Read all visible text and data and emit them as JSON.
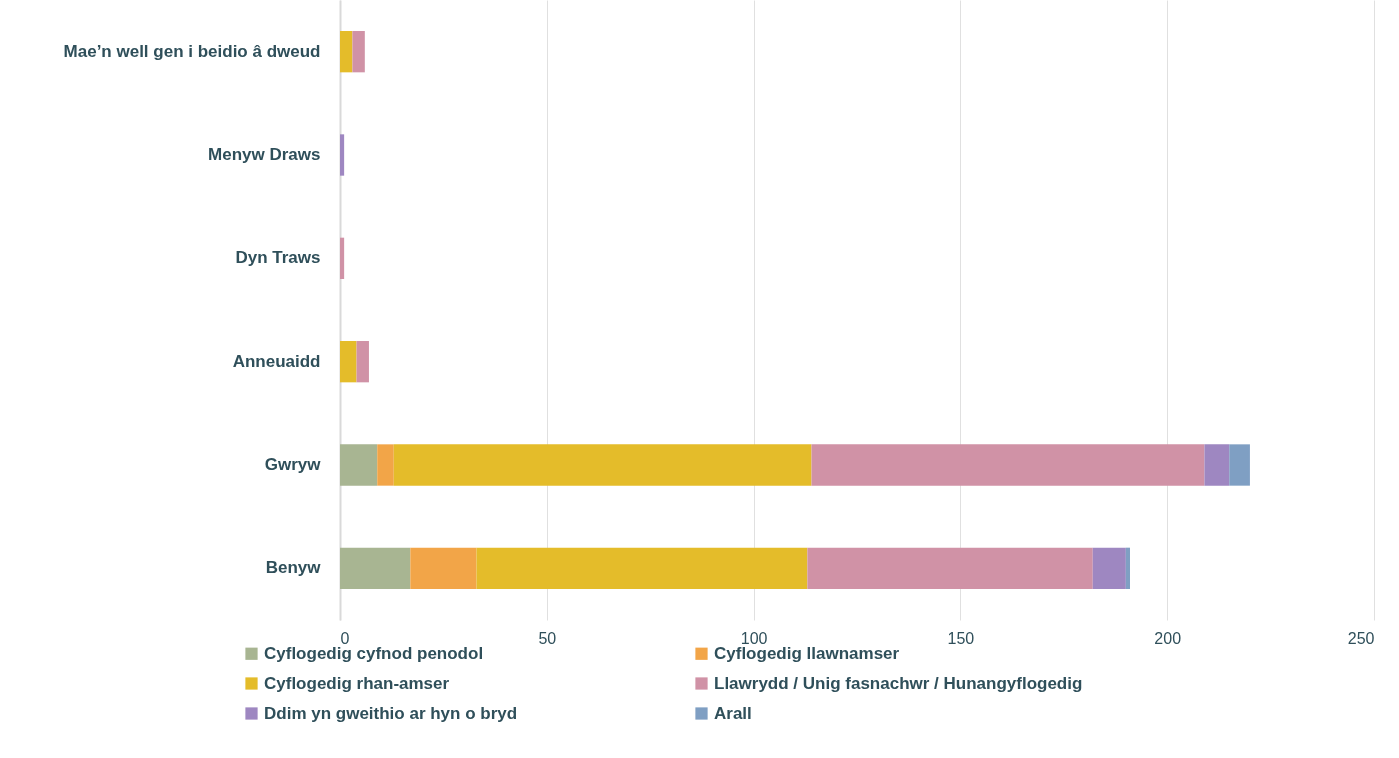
{
  "chart_data": {
    "type": "bar",
    "orientation": "horizontal",
    "stacked": true,
    "categories": [
      "Mae’n well gen i beidio â dweud",
      "Menyw Draws",
      "Dyn Traws",
      "Anneuaidd",
      "Gwryw",
      "Benyw"
    ],
    "series": [
      {
        "name": "Cyflogedig cyfnod penodol",
        "color": "#a8b592",
        "values": [
          null,
          null,
          null,
          null,
          9,
          17
        ]
      },
      {
        "name": "Cyflogedig llawnamser",
        "color": "#f2a548",
        "values": [
          null,
          null,
          null,
          null,
          4,
          16
        ]
      },
      {
        "name": "Cyflogedig rhan-amser",
        "color": "#e4bc2a",
        "values": [
          3,
          null,
          null,
          4,
          101,
          80
        ]
      },
      {
        "name": "Llawrydd / Unig fasnachwr / Hunangyflogedig",
        "color": "#d092a6",
        "values": [
          3,
          null,
          1,
          3,
          95,
          69
        ]
      },
      {
        "name": "Ddim yn gweithio ar hyn o bryd",
        "color": "#9e87c1",
        "values": [
          null,
          1,
          null,
          null,
          6,
          8
        ]
      },
      {
        "name": "Arall",
        "color": "#7f9fc3",
        "values": [
          null,
          null,
          null,
          null,
          5,
          1
        ]
      }
    ],
    "xlim": [
      0,
      250
    ],
    "xticks": [
      0,
      50,
      100,
      150,
      200,
      250
    ],
    "grid": "x",
    "legend": "bottom"
  }
}
